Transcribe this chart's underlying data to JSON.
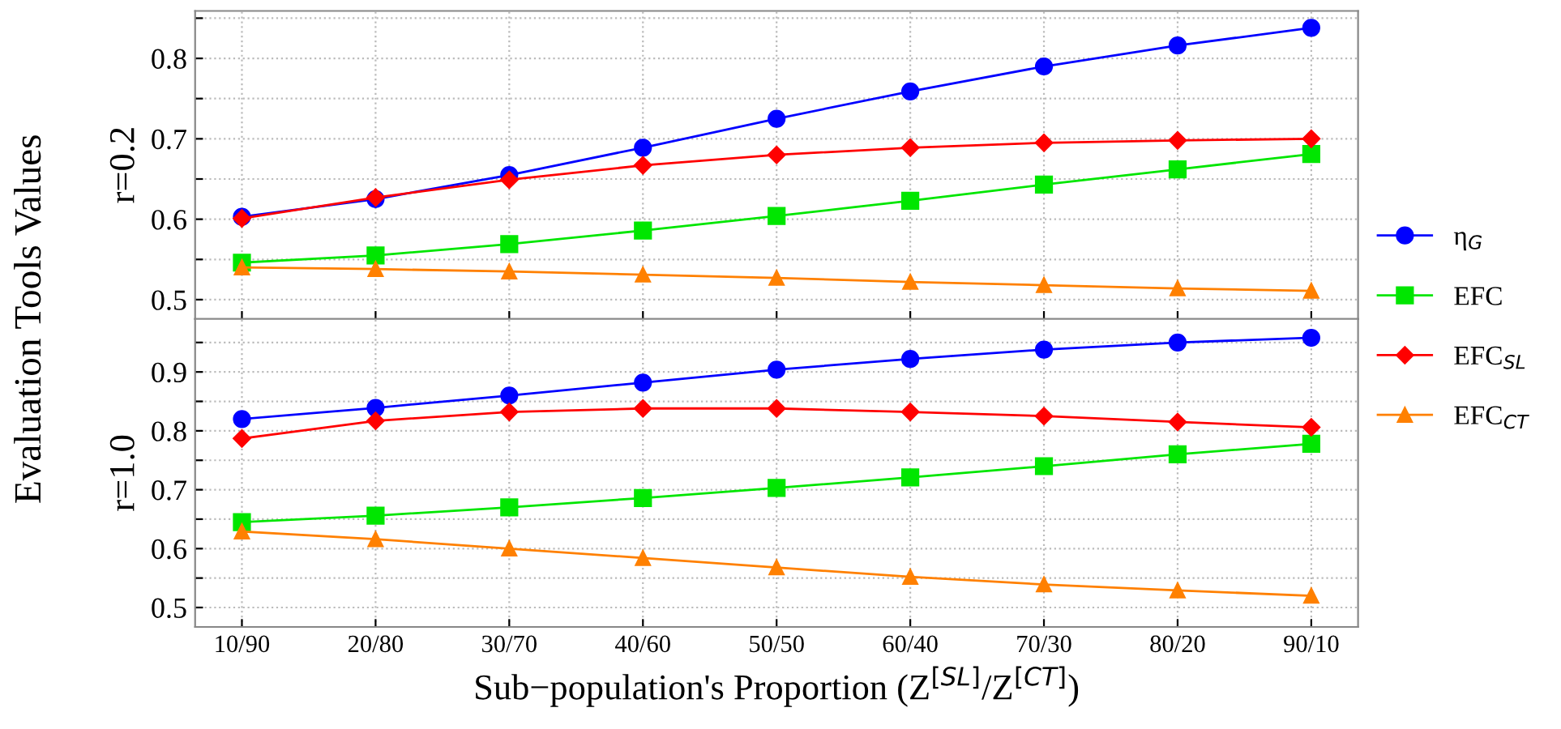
{
  "chart_data": [
    {
      "type": "line",
      "ylabel": "r=0.2",
      "annotations": [
        "Evaluation Tools Values"
      ],
      "categories": [
        null,
        null,
        null,
        null,
        null,
        null,
        null,
        null,
        null
      ],
      "series": [
        {
          "name": "η$_{G}$",
          "color": "#0000ff",
          "marker": "circle",
          "values": [
            0.603,
            0.625,
            0.655,
            0.689,
            0.725,
            0.759,
            0.79,
            0.816,
            0.838
          ]
        },
        {
          "name": "EFC",
          "color": "#00e600",
          "marker": "square",
          "values": [
            0.546,
            0.555,
            0.569,
            0.586,
            0.604,
            0.623,
            0.643,
            0.662,
            0.681
          ]
        },
        {
          "name": "EFC$_{SL}$",
          "color": "#ff0000",
          "marker": "diamond",
          "values": [
            0.601,
            0.627,
            0.649,
            0.667,
            0.68,
            0.689,
            0.695,
            0.698,
            0.7
          ]
        },
        {
          "name": "EFC$_{CT}$",
          "color": "#ff8000",
          "marker": "triangle",
          "values": [
            0.54,
            0.538,
            0.535,
            0.531,
            0.527,
            0.522,
            0.518,
            0.514,
            0.511
          ]
        }
      ],
      "ylim": [
        0.476,
        0.859
      ],
      "yticks": [
        0.5,
        {
          "value": 0.55,
          "label": null
        },
        0.6,
        {
          "value": 0.65,
          "label": null
        },
        0.7,
        {
          "value": 0.75,
          "label": null
        },
        0.8,
        {
          "value": 0.85,
          "label": null
        }
      ],
      "grid": true,
      "legend": "right",
      "tick_labels": "y"
    },
    {
      "type": "line",
      "ylabel": "r=1.0",
      "xlabel": "Sub−population's Proportion (Z$^{[SL]}$/Z$^{[CT]}$)",
      "categories": [
        "10/90",
        "20/80",
        "30/70",
        "40/60",
        "50/50",
        "60/40",
        "70/30",
        "80/20",
        "90/10"
      ],
      "series": [
        {
          "color": "#0000ff",
          "marker": "circle",
          "values": [
            0.82,
            0.839,
            0.86,
            0.882,
            0.904,
            0.922,
            0.938,
            0.95,
            0.958
          ]
        },
        {
          "color": "#00e600",
          "marker": "square",
          "values": [
            0.645,
            0.656,
            0.67,
            0.686,
            0.703,
            0.721,
            0.74,
            0.76,
            0.778
          ]
        },
        {
          "color": "#ff0000",
          "marker": "diamond",
          "values": [
            0.787,
            0.817,
            0.832,
            0.838,
            0.838,
            0.832,
            0.825,
            0.815,
            0.806
          ]
        },
        {
          "color": "#ff8000",
          "marker": "triangle",
          "values": [
            0.629,
            0.616,
            0.6,
            0.584,
            0.568,
            0.552,
            0.539,
            0.529,
            0.52
          ]
        }
      ],
      "ylim": [
        0.467,
        0.99
      ],
      "yticks": [
        0.5,
        {
          "value": 0.55,
          "label": null
        },
        0.6,
        {
          "value": 0.65,
          "label": null
        },
        0.7,
        {
          "value": 0.75,
          "label": null
        },
        0.8,
        {
          "value": 0.85,
          "label": null
        },
        0.9,
        {
          "value": 0.95,
          "label": null
        }
      ],
      "grid": true
    }
  ]
}
